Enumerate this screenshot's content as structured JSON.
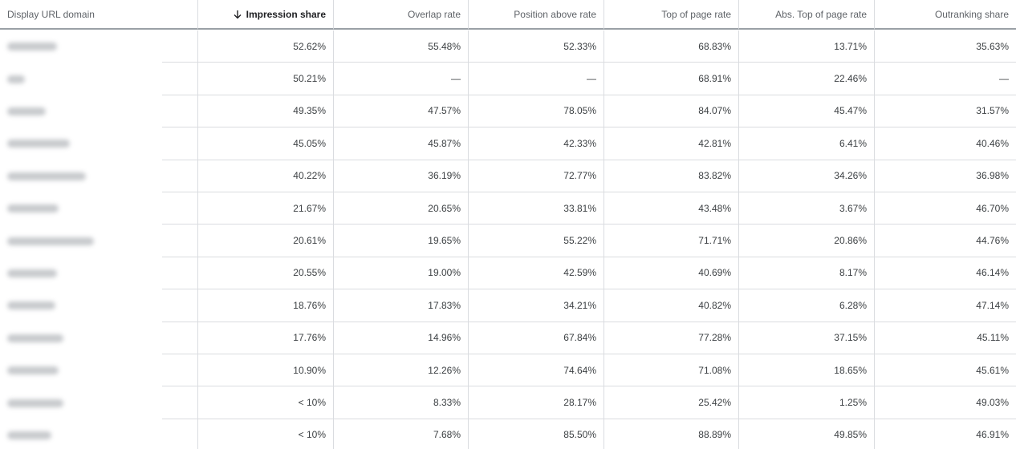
{
  "table": {
    "headers": [
      "Display URL domain",
      "Impression share",
      "Overlap rate",
      "Position above rate",
      "Top of page rate",
      "Abs. Top of page rate",
      "Outranking share"
    ],
    "rows": [
      [
        "52.62%",
        "55.48%",
        "52.33%",
        "68.83%",
        "13.71%",
        "35.63%"
      ],
      [
        "50.21%",
        "—",
        "—",
        "68.91%",
        "22.46%",
        "—"
      ],
      [
        "49.35%",
        "47.57%",
        "78.05%",
        "84.07%",
        "45.47%",
        "31.57%"
      ],
      [
        "45.05%",
        "45.87%",
        "42.33%",
        "42.81%",
        "6.41%",
        "40.46%"
      ],
      [
        "40.22%",
        "36.19%",
        "72.77%",
        "83.82%",
        "34.26%",
        "36.98%"
      ],
      [
        "21.67%",
        "20.65%",
        "33.81%",
        "43.48%",
        "3.67%",
        "46.70%"
      ],
      [
        "20.61%",
        "19.65%",
        "55.22%",
        "71.71%",
        "20.86%",
        "44.76%"
      ],
      [
        "20.55%",
        "19.00%",
        "42.59%",
        "40.69%",
        "8.17%",
        "46.14%"
      ],
      [
        "18.76%",
        "17.83%",
        "34.21%",
        "40.82%",
        "6.28%",
        "47.14%"
      ],
      [
        "17.76%",
        "14.96%",
        "67.84%",
        "77.28%",
        "37.15%",
        "45.11%"
      ],
      [
        "10.90%",
        "12.26%",
        "74.64%",
        "71.08%",
        "18.65%",
        "45.61%"
      ],
      [
        "< 10%",
        "8.33%",
        "28.17%",
        "25.42%",
        "1.25%",
        "49.03%"
      ],
      [
        "< 10%",
        "7.68%",
        "85.50%",
        "88.89%",
        "49.85%",
        "46.91%"
      ]
    ]
  }
}
